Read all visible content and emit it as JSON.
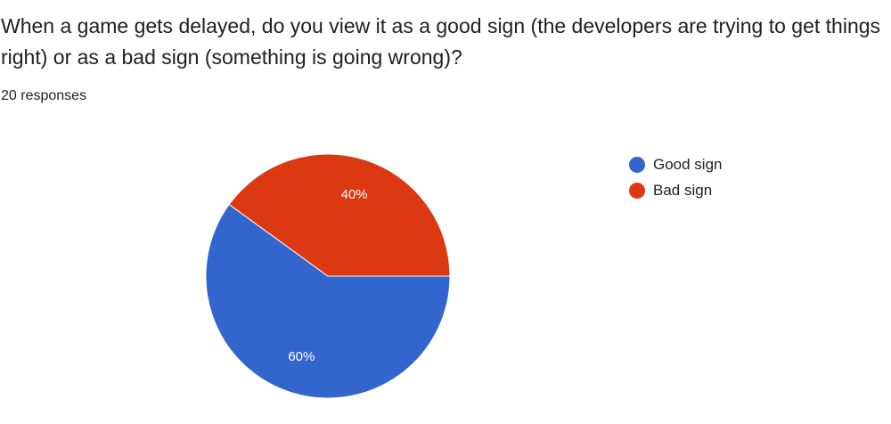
{
  "question": {
    "title": "When a game gets delayed, do you view it as a good sign (the developers are trying to get things right) or as a bad sign (something is going wrong)?",
    "response_count": "20 responses"
  },
  "chart_data": {
    "type": "pie",
    "slices": [
      {
        "label": "Good sign",
        "value": 60,
        "display": "60%",
        "color": "#3366cc"
      },
      {
        "label": "Bad sign",
        "value": 40,
        "display": "40%",
        "color": "#dc3912"
      }
    ],
    "legend_position": "right",
    "start_direction": "clockwise-from-3-oclock-good-sign"
  }
}
